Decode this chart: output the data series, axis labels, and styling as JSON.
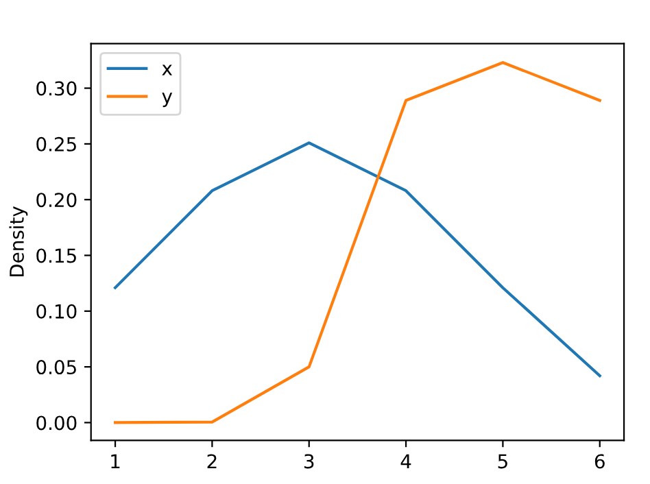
{
  "chart_data": {
    "type": "line",
    "ylabel": "Density",
    "x": [
      1,
      2,
      3,
      4,
      5,
      6
    ],
    "series": [
      {
        "name": "x",
        "color": "#1f77b4",
        "values": [
          0.121,
          0.208,
          0.251,
          0.208,
          0.121,
          0.042
        ]
      },
      {
        "name": "y",
        "color": "#ff7f0e",
        "values": [
          0.0,
          0.0005,
          0.05,
          0.289,
          0.323,
          0.289
        ]
      }
    ],
    "xlim": [
      0.75,
      6.25
    ],
    "ylim": [
      -0.016,
      0.34
    ],
    "xticks": [
      1,
      2,
      3,
      4,
      5,
      6
    ],
    "yticks": [
      {
        "value": 0,
        "label": "0.00"
      },
      {
        "value": 0.05,
        "label": "0.05"
      },
      {
        "value": 0.1,
        "label": "0.10"
      },
      {
        "value": 0.15,
        "label": "0.15"
      },
      {
        "value": 0.2,
        "label": "0.20"
      },
      {
        "value": 0.25,
        "label": "0.25"
      },
      {
        "value": 0.3,
        "label": "0.30"
      }
    ],
    "grid": false,
    "legend": "top left"
  }
}
